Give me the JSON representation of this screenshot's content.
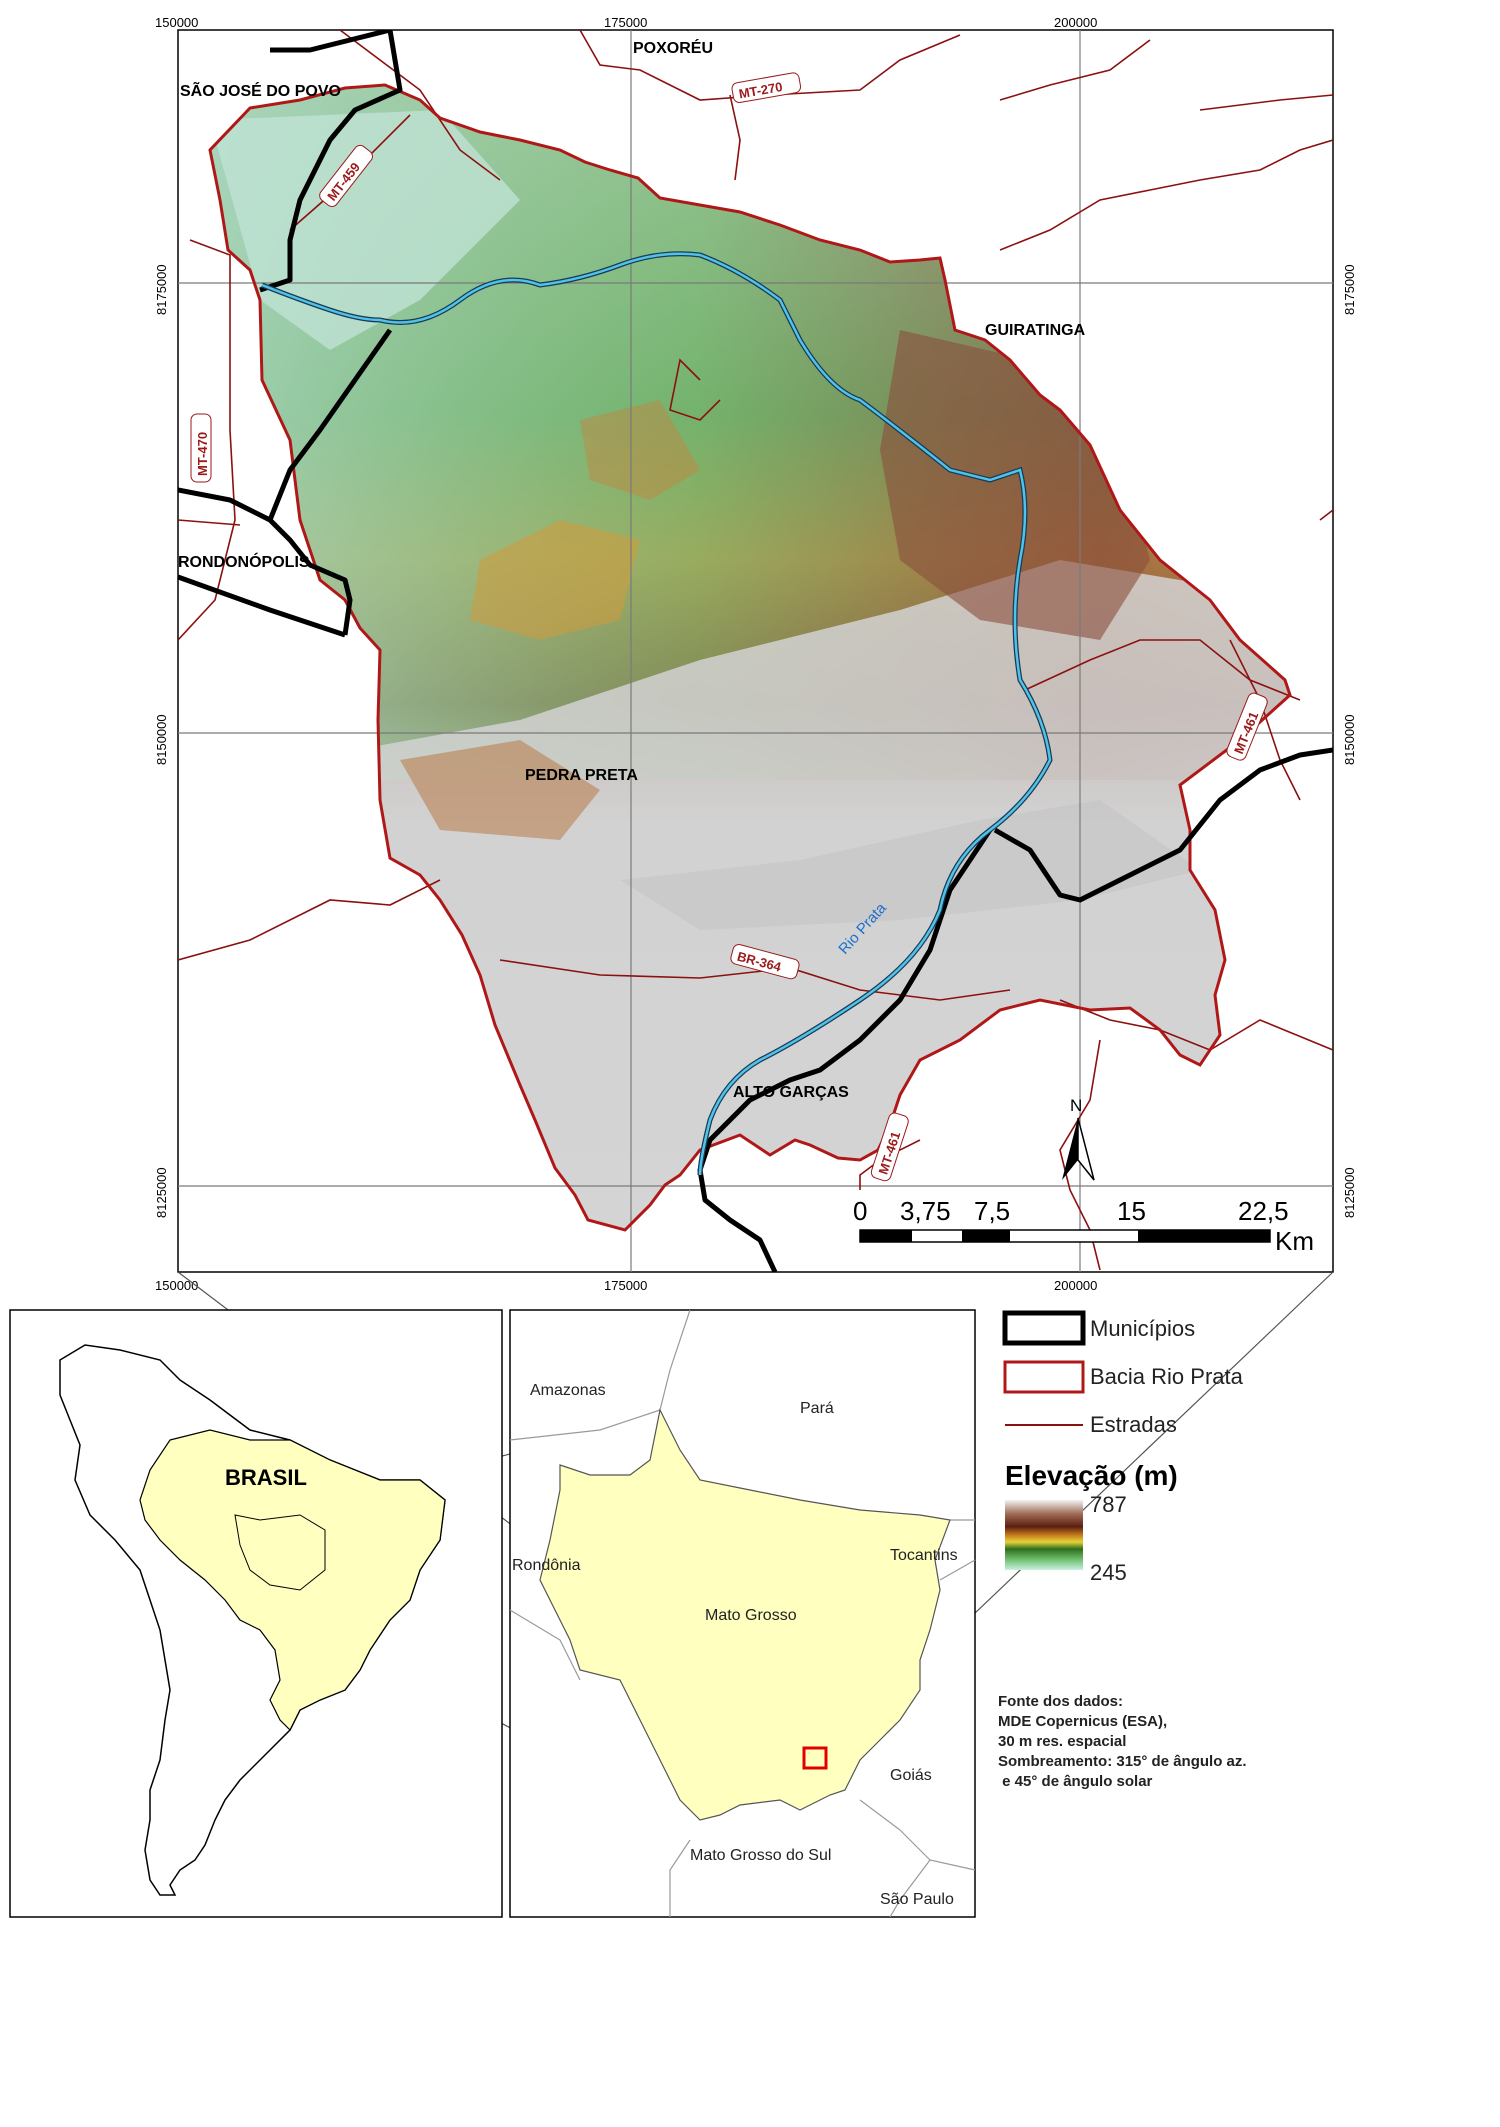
{
  "grid_ticks": {
    "x": [
      "150000",
      "175000",
      "200000"
    ],
    "y": [
      "8175000",
      "8150000",
      "8125000"
    ]
  },
  "municipalities": [
    "POXORÉU",
    "SÃO JOSÉ DO POVO",
    "RONDONÓPOLIS",
    "GUIRATINGA",
    "PEDRA PRETA",
    "ALTO GARÇAS"
  ],
  "roads": [
    "MT-270",
    "MT-459",
    "MT-470",
    "MT-461",
    "BR-364",
    "MT-461"
  ],
  "river_label": "Rio Prata",
  "north_arrow": "N",
  "scale_bar": {
    "labels": [
      "0",
      "3,75",
      "7,5",
      "15",
      "22,5"
    ],
    "unit": "Km"
  },
  "legend": {
    "items": [
      {
        "label": "Municípios",
        "color": "#000000"
      },
      {
        "label": "Bacia Rio Prata",
        "color": "#b01818"
      },
      {
        "label": "Estradas",
        "color": "#8b1010"
      }
    ],
    "elevation_title": "Elevação (m)",
    "elevation_max": "787",
    "elevation_min": "245"
  },
  "source": {
    "lines": [
      "Fonte dos dados:",
      "MDE Copernicus (ESA),",
      "30 m res. espacial",
      "Sombreamento: 315° de ângulo az.",
      " e 45° de ângulo solar"
    ]
  },
  "inset_continent": {
    "label": "BRASIL"
  },
  "inset_state": {
    "labels": [
      "Amazonas",
      "Pará",
      "Rondônia",
      "Tocantins",
      "Mato Grosso",
      "Goiás",
      "Mato Grosso do Sul",
      "São Paulo"
    ]
  },
  "colors": {
    "basin_outline": "#b01818",
    "roads": "#8b1010",
    "river": "#4fc3e8",
    "inset_fill": "#ffffc0"
  }
}
